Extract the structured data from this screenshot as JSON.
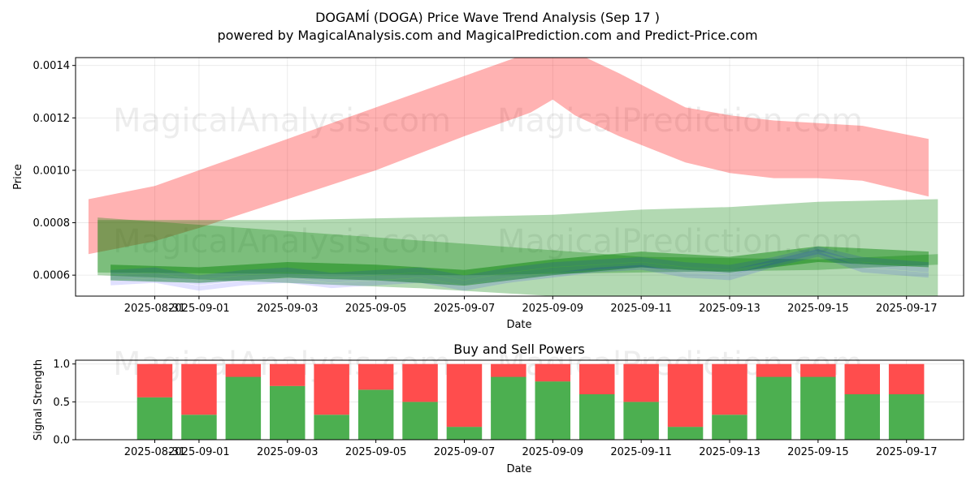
{
  "title": "DOGAMÍ (DOGA) Price Wave Trend Analysis (Sep 17 )",
  "subtitle": "powered by MagicalAnalysis.com and MagicalPrediction.com and Predict-Price.com",
  "watermarks": [
    "MagicalAnalysis.com",
    "MagicalPrediction.com"
  ],
  "colors": {
    "red_band": "#ff0000",
    "green_band": "#008000",
    "blue_band": "#0000ff",
    "buy": "#4caf50",
    "sell": "#ff4d4d"
  },
  "chart_data": [
    {
      "type": "area",
      "xlabel": "Date",
      "ylabel": "Price",
      "x_start": "2025-08-30",
      "ylim": [
        0.00052,
        0.00143
      ],
      "xlim": [
        "2025-08-29T05:00",
        "2025-09-18T07:00"
      ],
      "yticks": [
        0.0006,
        0.0008,
        0.001,
        0.0012,
        0.0014
      ],
      "ytick_labels": [
        "0.0006",
        "0.0008",
        "0.0010",
        "0.0012",
        "0.0014"
      ],
      "xticks": [
        "2025-08-31",
        "2025-09-01",
        "2025-09-03",
        "2025-09-05",
        "2025-09-07",
        "2025-09-09",
        "2025-09-11",
        "2025-09-13",
        "2025-09-15",
        "2025-09-17"
      ],
      "grid": true,
      "red_band": {
        "x": [
          "2025-08-29T12:00",
          "2025-08-31T00:00",
          "2025-09-01T00:00",
          "2025-09-03T00:00",
          "2025-09-05T00:00",
          "2025-09-07T00:00",
          "2025-09-08T12:00",
          "2025-09-09T00:00",
          "2025-09-09T12:00",
          "2025-09-10T12:00",
          "2025-09-12T00:00",
          "2025-09-13T00:00",
          "2025-09-14T00:00",
          "2025-09-15T00:00",
          "2025-09-16T00:00",
          "2025-09-17T12:00"
        ],
        "upper": [
          0.00089,
          0.00094,
          0.001,
          0.00112,
          0.00124,
          0.00136,
          0.00145,
          0.00147,
          0.00145,
          0.00137,
          0.00124,
          0.00121,
          0.00119,
          0.00118,
          0.00117,
          0.00112
        ],
        "lower": [
          0.00068,
          0.00073,
          0.00078,
          0.00089,
          0.001,
          0.00113,
          0.00122,
          0.00127,
          0.00121,
          0.00113,
          0.00103,
          0.00099,
          0.00097,
          0.00097,
          0.00096,
          0.0009
        ]
      },
      "green_bands": [
        {
          "x": [
            "2025-08-29T17:00",
            "2025-09-07T00:00",
            "2025-09-11T00:00",
            "2025-09-15T00:00",
            "2025-09-17T17:00"
          ],
          "upper": [
            0.00082,
            0.00072,
            0.00067,
            0.00066,
            0.00068
          ],
          "lower": [
            0.00061,
            0.0006,
            0.00061,
            0.00062,
            0.00064
          ]
        },
        {
          "x": [
            "2025-08-29T17:00",
            "2025-09-03T00:00",
            "2025-09-06T00:00",
            "2025-09-09T00:00",
            "2025-09-11T00:00",
            "2025-09-13T00:00",
            "2025-09-15T00:00",
            "2025-09-17T17:00"
          ],
          "upper": [
            0.00081,
            0.00081,
            0.00082,
            0.00083,
            0.00085,
            0.00086,
            0.00088,
            0.00089
          ],
          "lower": [
            0.0006,
            0.00057,
            0.00055,
            0.00052,
            0.0005,
            0.00048,
            0.00046,
            0.00044
          ]
        },
        {
          "x": [
            "2025-08-30T00:00",
            "2025-09-01T00:00",
            "2025-09-03T00:00",
            "2025-09-05T00:00",
            "2025-09-07T00:00",
            "2025-09-09T00:00",
            "2025-09-11T00:00",
            "2025-09-13T00:00",
            "2025-09-15T00:00",
            "2025-09-17T12:00"
          ],
          "upper": [
            0.00064,
            0.00063,
            0.00065,
            0.00064,
            0.00062,
            0.00066,
            0.00069,
            0.00067,
            0.00071,
            0.00069
          ],
          "lower": [
            0.00058,
            0.00057,
            0.00059,
            0.00058,
            0.00056,
            0.0006,
            0.00063,
            0.00061,
            0.00065,
            0.00063
          ]
        }
      ],
      "blue_lines": [
        {
          "x": [
            "2025-08-30T00:00",
            "2025-08-31T00:00",
            "2025-09-01T00:00",
            "2025-09-02T00:00",
            "2025-09-03T00:00",
            "2025-09-04T00:00",
            "2025-09-05T00:00",
            "2025-09-06T00:00",
            "2025-09-07T00:00",
            "2025-09-08T00:00",
            "2025-09-09T00:00",
            "2025-09-10T00:00",
            "2025-09-11T00:00",
            "2025-09-12T00:00",
            "2025-09-13T00:00",
            "2025-09-14T00:00",
            "2025-09-15T00:00",
            "2025-09-16T00:00",
            "2025-09-17T12:00"
          ],
          "y": [
            0.00057,
            0.00058,
            0.00055,
            0.00057,
            0.00058,
            0.00056,
            0.00057,
            0.00058,
            0.00055,
            0.00058,
            0.0006,
            0.00062,
            0.00063,
            0.0006,
            0.00059,
            0.00064,
            0.00068,
            0.00062,
            0.0006
          ]
        },
        {
          "x": [
            "2025-08-30T00:00",
            "2025-08-31T00:00",
            "2025-09-01T00:00",
            "2025-09-02T00:00",
            "2025-09-03T00:00",
            "2025-09-04T00:00",
            "2025-09-05T00:00",
            "2025-09-06T00:00",
            "2025-09-07T00:00",
            "2025-09-08T00:00",
            "2025-09-09T00:00",
            "2025-09-10T00:00",
            "2025-09-11T00:00",
            "2025-09-12T00:00",
            "2025-09-13T00:00",
            "2025-09-14T00:00",
            "2025-09-15T00:00",
            "2025-09-16T00:00",
            "2025-09-17T12:00"
          ],
          "y": [
            0.00059,
            0.0006,
            0.00057,
            0.00059,
            0.0006,
            0.00058,
            0.00059,
            0.0006,
            0.00057,
            0.0006,
            0.00062,
            0.00063,
            0.00064,
            0.00062,
            0.00061,
            0.00065,
            0.00069,
            0.00064,
            0.00062
          ]
        },
        {
          "x": [
            "2025-08-30T00:00",
            "2025-08-31T00:00",
            "2025-09-01T00:00",
            "2025-09-02T00:00",
            "2025-09-03T00:00",
            "2025-09-04T00:00",
            "2025-09-05T00:00",
            "2025-09-06T00:00",
            "2025-09-07T00:00",
            "2025-09-08T00:00",
            "2025-09-09T00:00",
            "2025-09-10T00:00",
            "2025-09-11T00:00",
            "2025-09-12T00:00",
            "2025-09-13T00:00",
            "2025-09-14T00:00",
            "2025-09-15T00:00",
            "2025-09-16T00:00",
            "2025-09-17T12:00"
          ],
          "y": [
            0.00061,
            0.00062,
            0.00059,
            0.00061,
            0.00062,
            0.0006,
            0.00061,
            0.00062,
            0.00059,
            0.00062,
            0.00064,
            0.00065,
            0.00066,
            0.00064,
            0.00063,
            0.00066,
            0.0007,
            0.00066,
            0.00064
          ]
        }
      ]
    },
    {
      "type": "bar",
      "title": "Buy and Sell Powers",
      "xlabel": "Date",
      "ylabel": "Signal Strength",
      "ylim": [
        0,
        1.05
      ],
      "yticks": [
        0.0,
        0.5,
        1.0
      ],
      "ytick_labels": [
        "0.0",
        "0.5",
        "1.0"
      ],
      "xlim": [
        "2025-08-29T05:00",
        "2025-09-18T07:00"
      ],
      "xticks": [
        "2025-08-31",
        "2025-09-01",
        "2025-09-03",
        "2025-09-05",
        "2025-09-07",
        "2025-09-09",
        "2025-09-11",
        "2025-09-13",
        "2025-09-15",
        "2025-09-17"
      ],
      "categories": [
        "2025-08-31",
        "2025-09-01",
        "2025-09-02",
        "2025-09-03",
        "2025-09-04",
        "2025-09-05",
        "2025-09-06",
        "2025-09-07",
        "2025-09-08",
        "2025-09-09",
        "2025-09-10",
        "2025-09-11",
        "2025-09-12",
        "2025-09-13",
        "2025-09-14",
        "2025-09-15",
        "2025-09-16",
        "2025-09-17"
      ],
      "series": [
        {
          "values": [
            0.56,
            0.33,
            0.83,
            0.71,
            0.33,
            0.66,
            0.5,
            0.17,
            0.83,
            0.77,
            0.6,
            0.5,
            0.17,
            0.33,
            0.83,
            0.83,
            0.6,
            0.6
          ]
        },
        {
          "values": [
            0.44,
            0.67,
            0.17,
            0.29,
            0.67,
            0.34,
            0.5,
            0.83,
            0.17,
            0.23,
            0.4,
            0.5,
            0.83,
            0.67,
            0.17,
            0.17,
            0.4,
            0.4
          ]
        }
      ],
      "grid": true
    }
  ]
}
